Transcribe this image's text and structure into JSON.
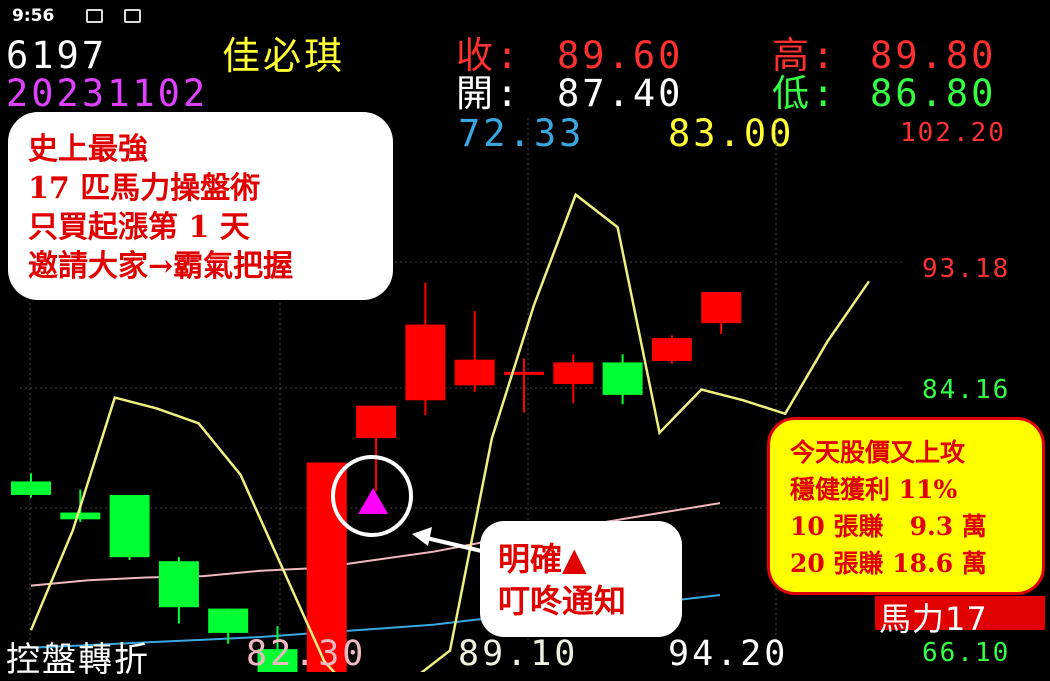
{
  "status_bar": {
    "time": "9:56"
  },
  "header": {
    "code": "6197",
    "name": "佳必琪",
    "date": "20231102",
    "close_label": "收:",
    "close_value": "89.60",
    "high_label": "高:",
    "high_value": "89.80",
    "open_label": "開:",
    "open_value": "87.40",
    "low_label": "低:",
    "low_value": "86.80",
    "ma_value_1": "72.33",
    "ma_value_2": "83.00"
  },
  "callouts": {
    "promo_lines": [
      "史上最強",
      "17 匹馬力操盤術",
      "只買起漲第 1 天",
      "邀請大家→霸氣把握"
    ],
    "signal_lines": [
      "明確▲",
      "叮咚通知"
    ],
    "profit_lines": [
      "今天股價又上攻",
      "穩健獲利 11%",
      "10 張賺   9.3 萬",
      "20 張賺 18.6 萬"
    ],
    "badge": "馬力17"
  },
  "footer": {
    "label": "控盤轉折",
    "value_1": "82.30",
    "value_2": "89.10",
    "value_3": "94.20",
    "value_4": "66.10"
  },
  "colors": {
    "up": "#ff0000",
    "down": "#00ff33",
    "indicator_line": "#f0f080",
    "ma_pink": "#f0b8c0",
    "ma_blue": "#3aa8e0",
    "signal": "#ff00ff"
  },
  "chart_data": {
    "type": "candlestick",
    "y_ticks": [
      "102.20",
      "93.18",
      "84.16",
      "66.10"
    ],
    "ylim": [
      66.1,
      102.2
    ],
    "candles": [
      {
        "open": 77.4,
        "high": 78.0,
        "close": 76.4,
        "low": 76.2
      },
      {
        "open": 75.1,
        "high": 76.8,
        "close": 74.6,
        "low": 74.4
      },
      {
        "open": 76.4,
        "high": 76.4,
        "close": 71.8,
        "low": 71.6
      },
      {
        "open": 71.5,
        "high": 71.8,
        "close": 68.1,
        "low": 66.9
      },
      {
        "open": 68.0,
        "high": 68.0,
        "close": 66.2,
        "low": 65.4
      },
      {
        "open": 65.0,
        "high": 66.7,
        "close": 62.9,
        "low": 61.6
      },
      {
        "open": 62.0,
        "high": 78.8,
        "close": 78.8,
        "low": 61.9
      },
      {
        "open": 80.6,
        "high": 82.7,
        "close": 83.0,
        "low": 76.7
      },
      {
        "open": 83.4,
        "high": 92.1,
        "close": 89.0,
        "low": 82.3
      },
      {
        "open": 84.5,
        "high": 90.0,
        "close": 86.4,
        "low": 84.0
      },
      {
        "open": 85.5,
        "high": 86.5,
        "close": 85.5,
        "low": 82.5
      },
      {
        "open": 84.6,
        "high": 86.8,
        "close": 86.2,
        "low": 83.2
      },
      {
        "open": 86.2,
        "high": 86.8,
        "close": 83.8,
        "low": 83.1
      },
      {
        "open": 86.3,
        "high": 88.2,
        "close": 88.0,
        "low": 86.1
      },
      {
        "open": 89.1,
        "high": 91.4,
        "close": 91.4,
        "low": 88.3
      }
    ],
    "signal_index": 7,
    "indicator_line": [
      66.4,
      73.8,
      83.6,
      82.8,
      81.7,
      77.9,
      71.0,
      64.1,
      60.7,
      62.5,
      64.9,
      80.6,
      90.4,
      98.6,
      96.2,
      81.0,
      84.2,
      83.4,
      82.4,
      87.7,
      92.2
    ],
    "ma_pink": [
      69.7,
      70.1,
      70.3,
      70.4,
      70.8,
      71.0,
      71.6,
      72.2,
      73.0,
      73.6,
      74.4,
      75.1,
      75.8
    ],
    "ma_blue": [
      65.1,
      65.3,
      65.5,
      65.7,
      65.9,
      66.2,
      66.5,
      66.8,
      67.3,
      67.7,
      68.1,
      68.5,
      69.0
    ]
  }
}
